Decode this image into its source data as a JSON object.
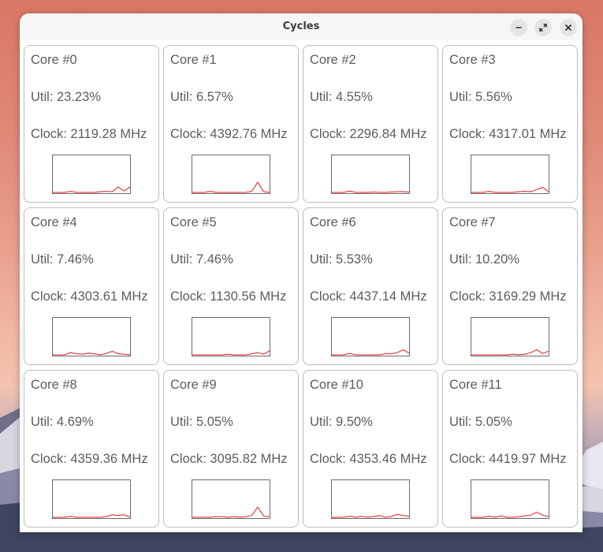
{
  "window": {
    "title": "Cycles"
  },
  "colors": {
    "graph_line": "#e01b1b",
    "graph_border": "#6b6b6b",
    "card_border": "#bdbdbd"
  },
  "icons": {
    "minimize": "minimize-icon",
    "maximize": "maximize-icon",
    "close": "close-icon"
  },
  "cores": [
    {
      "name": "Core #0",
      "util": "Util: 23.23%",
      "clock": "Clock: 2119.28 MHz",
      "history": [
        0,
        0,
        0,
        3,
        0,
        0,
        0,
        0,
        2,
        3,
        2,
        15,
        4,
        15
      ]
    },
    {
      "name": "Core #1",
      "util": "Util: 6.57%",
      "clock": "Clock: 4392.76 MHz",
      "history": [
        0,
        0,
        0,
        3,
        0,
        0,
        0,
        0,
        0,
        0,
        3,
        28,
        2,
        0
      ]
    },
    {
      "name": "Core #2",
      "util": "Util: 4.55%",
      "clock": "Clock: 2296.84 MHz",
      "history": [
        0,
        0,
        0,
        4,
        0,
        0,
        0,
        1,
        0,
        0,
        1,
        2,
        2,
        1
      ]
    },
    {
      "name": "Core #3",
      "util": "Util: 5.56%",
      "clock": "Clock: 4317.01 MHz",
      "history": [
        0,
        0,
        0,
        3,
        0,
        0,
        0,
        0,
        2,
        3,
        2,
        8,
        14,
        2
      ]
    },
    {
      "name": "Core #4",
      "util": "Util: 7.46%",
      "clock": "Clock: 4303.61 MHz",
      "history": [
        0,
        0,
        0,
        6,
        3,
        2,
        5,
        3,
        0,
        4,
        10,
        3,
        2,
        0
      ]
    },
    {
      "name": "Core #5",
      "util": "Util: 7.46%",
      "clock": "Clock: 1130.56 MHz",
      "history": [
        0,
        0,
        0,
        0,
        0,
        0,
        2,
        0,
        0,
        0,
        3,
        6,
        2,
        11
      ]
    },
    {
      "name": "Core #6",
      "util": "Util: 5.53%",
      "clock": "Clock: 4437.14 MHz",
      "history": [
        0,
        0,
        0,
        4,
        0,
        0,
        0,
        0,
        0,
        3,
        3,
        6,
        14,
        5
      ]
    },
    {
      "name": "Core #7",
      "util": "Util: 10.20%",
      "clock": "Clock: 3169.29 MHz",
      "history": [
        0,
        0,
        0,
        0,
        0,
        0,
        0,
        2,
        0,
        2,
        6,
        14,
        4,
        10
      ]
    },
    {
      "name": "Core #8",
      "util": "Util: 4.69%",
      "clock": "Clock: 4359.36 MHz",
      "history": [
        0,
        0,
        0,
        3,
        0,
        0,
        0,
        0,
        0,
        2,
        7,
        5,
        7,
        0
      ]
    },
    {
      "name": "Core #9",
      "util": "Util: 5.05%",
      "clock": "Clock: 3095.82 MHz",
      "history": [
        0,
        0,
        0,
        0,
        2,
        2,
        0,
        2,
        0,
        2,
        5,
        28,
        3,
        2
      ]
    },
    {
      "name": "Core #10",
      "util": "Util: 9.50%",
      "clock": "Clock: 4353.46 MHz",
      "history": [
        0,
        0,
        0,
        3,
        0,
        3,
        0,
        2,
        5,
        0,
        2,
        8,
        5,
        3
      ]
    },
    {
      "name": "Core #11",
      "util": "Util: 5.05%",
      "clock": "Clock: 4419.97 MHz",
      "history": [
        0,
        0,
        0,
        3,
        0,
        4,
        0,
        0,
        2,
        4,
        6,
        14,
        6,
        2
      ]
    }
  ]
}
